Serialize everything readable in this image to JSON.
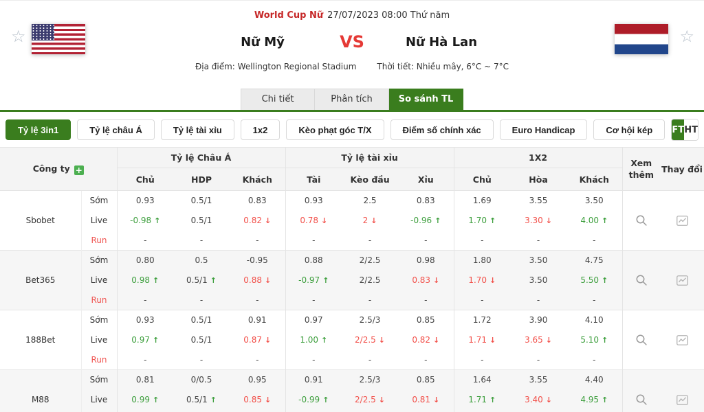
{
  "colors": {
    "accent_green": "#3a7d1e",
    "league_red": "#c62828",
    "vs_red": "#e53935",
    "value_up_green": "#3c9e3c",
    "value_down_red": "#f2504a"
  },
  "icons": {
    "favorite": "☆",
    "add": "+",
    "more": "magnifier-icon",
    "change": "trend-chart-icon"
  },
  "header": {
    "league": "World Cup Nữ",
    "datetime": "27/07/2023 08:00 Thứ năm",
    "home_team": "Nữ Mỹ",
    "vs": "VS",
    "away_team": "Nữ Hà Lan",
    "venue": "Địa điểm: Wellington Regional Stadium",
    "weather": "Thời tiết: Nhiều mây, 6°C ~ 7°C"
  },
  "tabs": [
    {
      "label": "Chi tiết",
      "active": false
    },
    {
      "label": "Phân tích",
      "active": false
    },
    {
      "label": "So sánh TL",
      "active": true
    }
  ],
  "filters": [
    {
      "label": "Tỷ lệ 3in1",
      "active": true
    },
    {
      "label": "Tỷ lệ châu Á",
      "active": false
    },
    {
      "label": "Tỷ lệ tài xỉu",
      "active": false
    },
    {
      "label": "1x2",
      "active": false
    },
    {
      "label": "Kèo phạt góc T/X",
      "active": false
    },
    {
      "label": "Điểm số chính xác",
      "active": false
    },
    {
      "label": "Euro Handicap",
      "active": false
    },
    {
      "label": "Cơ hội kép",
      "active": false
    }
  ],
  "period_toggle": [
    {
      "label": "FT",
      "active": true
    },
    {
      "label": "HT",
      "active": false
    }
  ],
  "table": {
    "company_header": "Công ty",
    "groups": [
      "Tỷ lệ Châu Á",
      "Tỷ lệ tài xỉu",
      "1X2"
    ],
    "subheaders": [
      "Chủ",
      "HDP",
      "Khách",
      "Tài",
      "Kèo đầu",
      "Xỉu",
      "Chủ",
      "Hòa",
      "Khách"
    ],
    "more_header": "Xem thêm",
    "change_header": "Thay đổi",
    "row_labels": {
      "early": "Sớm",
      "live": "Live",
      "run": "Run"
    },
    "companies": [
      {
        "name": "Sbobet",
        "som": [
          "0.93",
          "0.5/1",
          "0.83",
          "0.93",
          "2.5",
          "0.83",
          "1.69",
          "3.55",
          "3.50"
        ],
        "live": [
          {
            "v": "-0.98",
            "c": "green",
            "a": "up"
          },
          {
            "v": "0.5/1",
            "c": "dark",
            "a": null
          },
          {
            "v": "0.82",
            "c": "red",
            "a": "down"
          },
          {
            "v": "0.78",
            "c": "red",
            "a": "down"
          },
          {
            "v": "2",
            "c": "red",
            "a": "down"
          },
          {
            "v": "-0.96",
            "c": "green",
            "a": "up"
          },
          {
            "v": "1.70",
            "c": "green",
            "a": "up"
          },
          {
            "v": "3.30",
            "c": "red",
            "a": "down"
          },
          {
            "v": "4.00",
            "c": "green",
            "a": "up"
          }
        ],
        "run": [
          "-",
          "-",
          "-",
          "-",
          "-",
          "-",
          "-",
          "-",
          "-"
        ]
      },
      {
        "name": "Bet365",
        "som": [
          "0.80",
          "0.5",
          "-0.95",
          "0.88",
          "2/2.5",
          "0.98",
          "1.80",
          "3.50",
          "4.75"
        ],
        "live": [
          {
            "v": "0.98",
            "c": "green",
            "a": "up"
          },
          {
            "v": "0.5/1",
            "c": "dark",
            "a": "up"
          },
          {
            "v": "0.88",
            "c": "red",
            "a": "down"
          },
          {
            "v": "-0.97",
            "c": "green",
            "a": "up"
          },
          {
            "v": "2/2.5",
            "c": "dark",
            "a": null
          },
          {
            "v": "0.83",
            "c": "red",
            "a": "down"
          },
          {
            "v": "1.70",
            "c": "red",
            "a": "down"
          },
          {
            "v": "3.50",
            "c": "dark",
            "a": null
          },
          {
            "v": "5.50",
            "c": "green",
            "a": "up"
          }
        ],
        "run": [
          "-",
          "-",
          "-",
          "-",
          "-",
          "-",
          "-",
          "-",
          "-"
        ]
      },
      {
        "name": "188Bet",
        "som": [
          "0.93",
          "0.5/1",
          "0.91",
          "0.97",
          "2.5/3",
          "0.85",
          "1.72",
          "3.90",
          "4.10"
        ],
        "live": [
          {
            "v": "0.97",
            "c": "green",
            "a": "up"
          },
          {
            "v": "0.5/1",
            "c": "dark",
            "a": null
          },
          {
            "v": "0.87",
            "c": "red",
            "a": "down"
          },
          {
            "v": "1.00",
            "c": "green",
            "a": "up"
          },
          {
            "v": "2/2.5",
            "c": "red",
            "a": "down"
          },
          {
            "v": "0.82",
            "c": "red",
            "a": "down"
          },
          {
            "v": "1.71",
            "c": "red",
            "a": "down"
          },
          {
            "v": "3.65",
            "c": "red",
            "a": "down"
          },
          {
            "v": "5.10",
            "c": "green",
            "a": "up"
          }
        ],
        "run": [
          "-",
          "-",
          "-",
          "-",
          "-",
          "-",
          "-",
          "-",
          "-"
        ]
      },
      {
        "name": "M88",
        "som": [
          "0.81",
          "0/0.5",
          "0.95",
          "0.91",
          "2.5/3",
          "0.85",
          "1.64",
          "3.55",
          "4.40"
        ],
        "live": [
          {
            "v": "0.99",
            "c": "green",
            "a": "up"
          },
          {
            "v": "0.5/1",
            "c": "dark",
            "a": "up"
          },
          {
            "v": "0.85",
            "c": "red",
            "a": "down"
          },
          {
            "v": "-0.99",
            "c": "green",
            "a": "up"
          },
          {
            "v": "2/2.5",
            "c": "red",
            "a": "down"
          },
          {
            "v": "0.81",
            "c": "red",
            "a": "down"
          },
          {
            "v": "1.71",
            "c": "green",
            "a": "up"
          },
          {
            "v": "3.40",
            "c": "red",
            "a": "down"
          },
          {
            "v": "4.95",
            "c": "green",
            "a": "up"
          }
        ],
        "run": [
          "-",
          "-",
          "-",
          "-",
          "-",
          "-",
          "-",
          "-",
          "-"
        ]
      }
    ]
  }
}
